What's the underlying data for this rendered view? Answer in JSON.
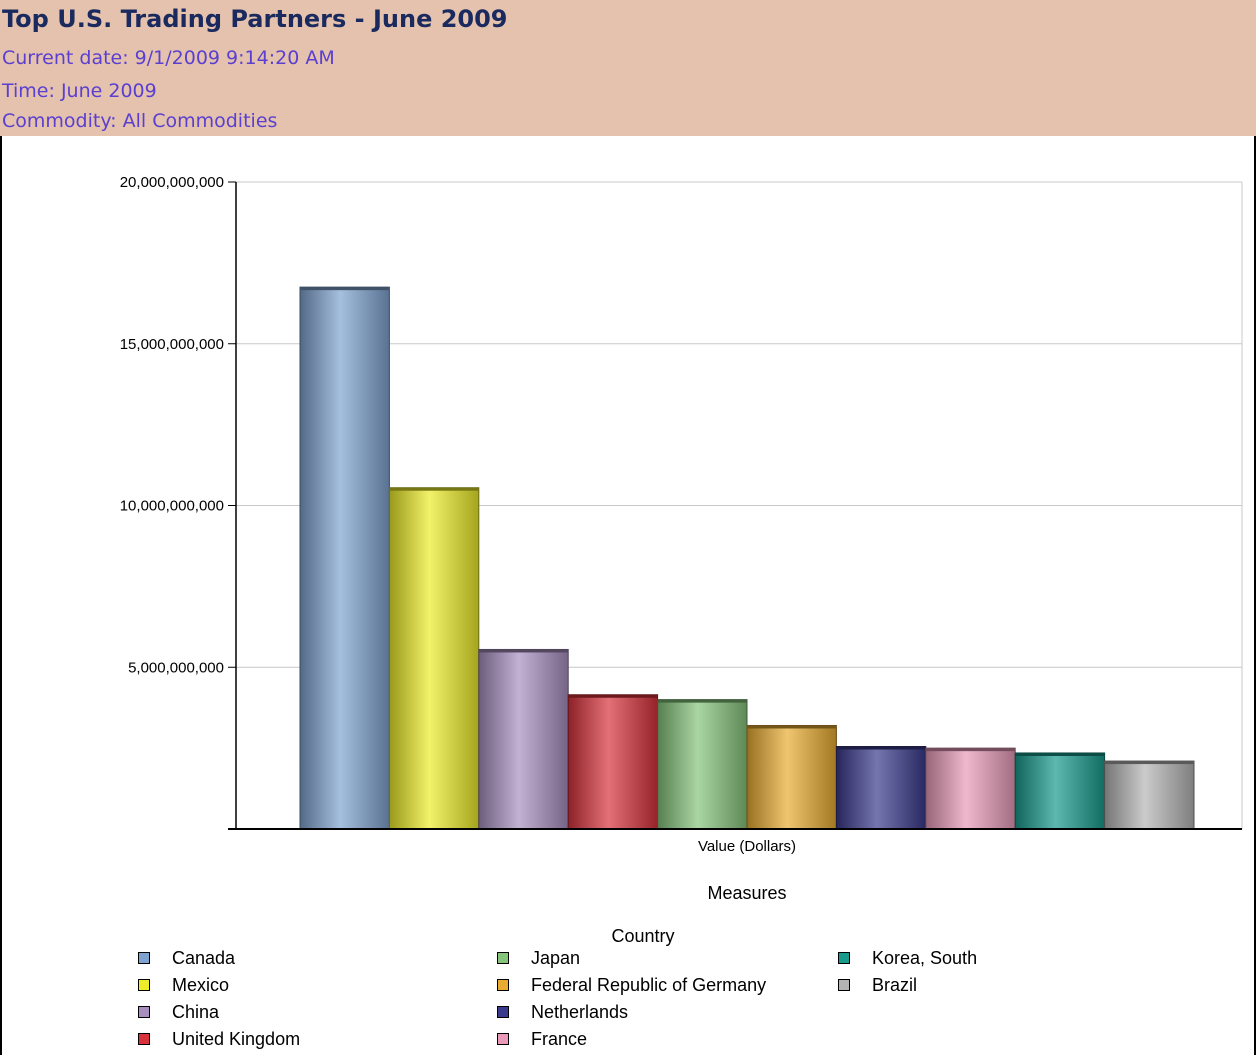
{
  "header": {
    "title": "Top U.S. Trading Partners - June 2009",
    "current_date": "Current date: 9/1/2009 9:14:20 AM",
    "time": "Time: June 2009",
    "commodity": "Commodity: All Commodities"
  },
  "chart_data": {
    "type": "bar",
    "title": "Top U.S. Trading Partners - June 2009",
    "categories": [
      "Value (Dollars)"
    ],
    "xlabel": "Measures",
    "ylabel": "",
    "ylim": [
      0,
      20000000000
    ],
    "yticks": [
      {
        "value": 0,
        "label": ""
      },
      {
        "value": 5000000000,
        "label": "5,000,000,000"
      },
      {
        "value": 10000000000,
        "label": "10,000,000,000"
      },
      {
        "value": 15000000000,
        "label": "15,000,000,000"
      },
      {
        "value": 20000000000,
        "label": "20,000,000,000"
      }
    ],
    "grid": true,
    "legend_title": "Country",
    "legend_placement": "bottom",
    "series": [
      {
        "name": "Canada",
        "values": [
          16750000000
        ],
        "color": "#7fa3d0"
      },
      {
        "name": "Mexico",
        "values": [
          10550000000
        ],
        "color": "#ecec2a"
      },
      {
        "name": "China",
        "values": [
          5550000000
        ],
        "color": "#a88fc0"
      },
      {
        "name": "United Kingdom",
        "values": [
          4150000000
        ],
        "color": "#d8323c"
      },
      {
        "name": "Japan",
        "values": [
          4000000000
        ],
        "color": "#86c47c"
      },
      {
        "name": "Federal Republic of Germany",
        "values": [
          3200000000
        ],
        "color": "#e8ac32"
      },
      {
        "name": "Netherlands",
        "values": [
          2550000000
        ],
        "color": "#3a3a8c"
      },
      {
        "name": "France",
        "values": [
          2500000000
        ],
        "color": "#e89ab8"
      },
      {
        "name": "Korea, South",
        "values": [
          2350000000
        ],
        "color": "#189a8c"
      },
      {
        "name": "Brazil",
        "values": [
          2100000000
        ],
        "color": "#b4b4b4"
      }
    ]
  }
}
